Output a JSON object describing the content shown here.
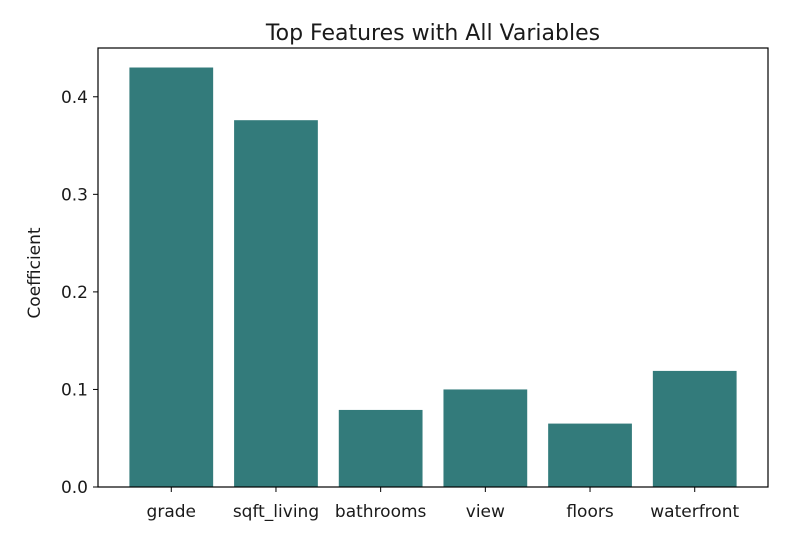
{
  "chart_data": {
    "type": "bar",
    "title": "Top Features with All Variables",
    "xlabel": "",
    "ylabel": "Coefficient",
    "categories": [
      "grade",
      "sqft_living",
      "bathrooms",
      "view",
      "floors",
      "waterfront"
    ],
    "values": [
      0.43,
      0.376,
      0.079,
      0.1,
      0.065,
      0.119
    ],
    "ylim": [
      0,
      0.45
    ],
    "yticks": [
      0.0,
      0.1,
      0.2,
      0.3,
      0.4
    ],
    "ytick_labels": [
      "0.0",
      "0.1",
      "0.2",
      "0.3",
      "0.4"
    ],
    "bar_color": "#337b7b",
    "grid": false,
    "legend": "none"
  }
}
